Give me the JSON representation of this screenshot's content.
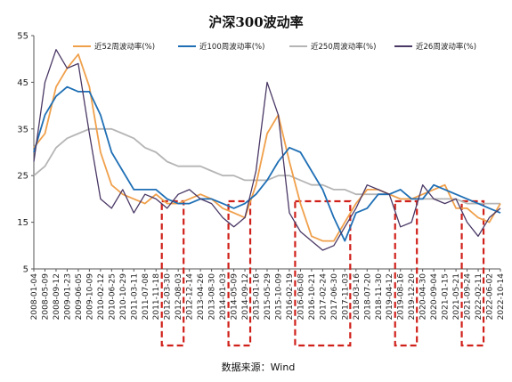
{
  "chart_data": {
    "type": "line",
    "title": "沪深300波动率",
    "source": "数据来源：Wind",
    "xlabel": "",
    "ylabel": "",
    "ylim": [
      5,
      55
    ],
    "yticks": [
      5,
      15,
      25,
      35,
      45,
      55
    ],
    "grid": false,
    "legend_position": "top",
    "x_tick_labels": [
      "2008-01-04",
      "2008-05-09",
      "2008-09-12",
      "2009-01-23",
      "2009-06-05",
      "2009-10-09",
      "2010-02-12",
      "2010-06-25",
      "2010-10-29",
      "2011-03-11",
      "2011-07-08",
      "2011-11-18",
      "2012-03-30",
      "2012-08-03",
      "2012-12-14",
      "2013-04-26",
      "2013-08-30",
      "2014-01-03",
      "2014-05-09",
      "2014-09-12",
      "2015-01-16",
      "2015-05-29",
      "2015-10-09",
      "2016-02-19",
      "2016-06-08",
      "2016-10-21",
      "2017-02-24",
      "2017-06-30",
      "2017-11-03",
      "2018-03-16",
      "2018-07-20",
      "2018-11-30",
      "2019-04-12",
      "2019-08-16",
      "2019-12-20",
      "2020-04-30",
      "2020-09-04",
      "2021-01-15",
      "2021-05-21",
      "2021-09-24",
      "2022-02-11",
      "2022-06-02",
      "2022-10-14"
    ],
    "series": [
      {
        "name": "近52周波动率(%)",
        "color": "#F0A04B",
        "values": [
          31,
          34,
          44,
          48,
          51,
          44,
          30,
          23,
          21,
          20,
          19,
          21,
          19,
          19,
          20,
          21,
          20,
          18,
          17,
          16,
          23,
          34,
          38,
          28,
          19,
          12,
          11,
          11,
          15,
          19,
          22,
          22,
          21,
          20,
          20,
          21,
          22,
          23,
          18,
          18,
          16,
          15,
          19
        ]
      },
      {
        "name": "近100周波动率(%)",
        "color": "#1F6FB5",
        "values": [
          30,
          38,
          42,
          44,
          43,
          43,
          38,
          30,
          26,
          22,
          22,
          22,
          20,
          19,
          19,
          20,
          20,
          19,
          18,
          19,
          21,
          24,
          28,
          31,
          30,
          26,
          22,
          16,
          11,
          17,
          18,
          21,
          21,
          22,
          20,
          20,
          23,
          22,
          21,
          20,
          19,
          18,
          17
        ]
      },
      {
        "name": "近250周波动率(%)",
        "color": "#B5B5B5",
        "values": [
          25,
          27,
          31,
          33,
          34,
          35,
          35,
          35,
          34,
          33,
          31,
          30,
          28,
          27,
          27,
          27,
          26,
          25,
          25,
          24,
          24,
          24,
          25,
          25,
          24,
          23,
          23,
          22,
          22,
          21,
          21,
          21,
          21,
          20,
          20,
          20,
          20,
          20,
          20,
          19,
          19,
          19,
          19
        ]
      },
      {
        "name": "近26周波动率(%)",
        "color": "#4A3865",
        "values": [
          28,
          45,
          52,
          48,
          49,
          34,
          20,
          18,
          22,
          17,
          21,
          20,
          18,
          21,
          22,
          20,
          19,
          16,
          14,
          16,
          26,
          45,
          38,
          17,
          13,
          11,
          9,
          10,
          14,
          18,
          23,
          22,
          21,
          14,
          15,
          23,
          20,
          19,
          20,
          15,
          12,
          16,
          18
        ]
      }
    ],
    "highlight_ranges": [
      {
        "from": "2012-03-30",
        "to": "2012-08-03"
      },
      {
        "from": "2014-05-09",
        "to": "2014-09-12"
      },
      {
        "from": "2016-06-08",
        "to": "2017-11-03"
      },
      {
        "from": "2019-08-16",
        "to": "2019-12-20"
      },
      {
        "from": "2021-09-24",
        "to": "2022-02-11"
      }
    ]
  }
}
